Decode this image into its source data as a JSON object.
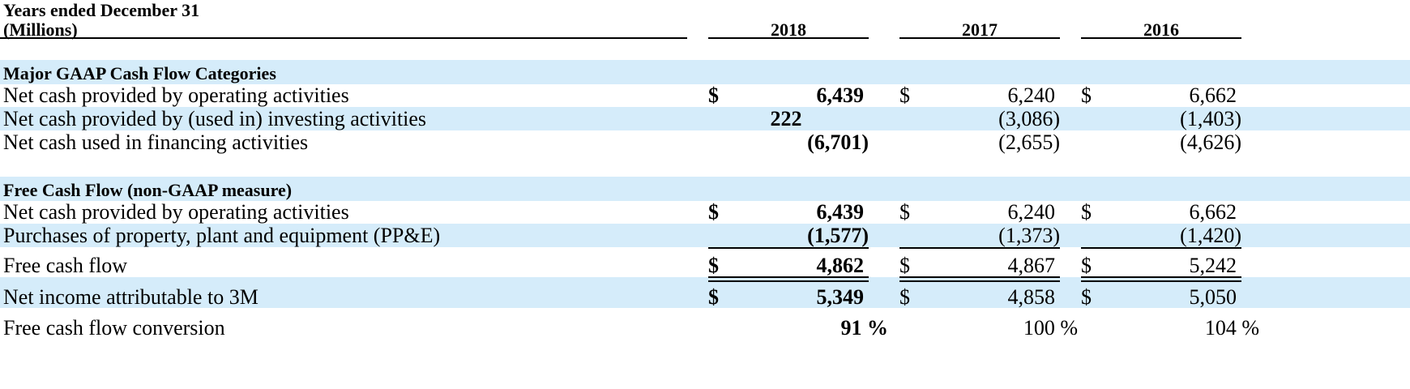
{
  "header": {
    "line1": "Years ended December 31",
    "line2": "(Millions)",
    "years": [
      "2018",
      "2017",
      "2016"
    ]
  },
  "section1": {
    "title": "Major GAAP Cash Flow Categories",
    "rows": [
      {
        "label": "Net cash provided by operating activities",
        "dollar": [
          "$",
          "$",
          "$"
        ],
        "values": [
          "6,439",
          "6,240",
          "6,662"
        ]
      },
      {
        "label": "Net cash provided by (used in) investing activities",
        "dollar": [
          "",
          "",
          ""
        ],
        "values": [
          "222",
          "(3,086)",
          "(1,403)"
        ]
      },
      {
        "label": "Net cash used in financing activities",
        "dollar": [
          "",
          "",
          ""
        ],
        "values": [
          "(6,701)",
          "(2,655)",
          "(4,626)"
        ]
      }
    ]
  },
  "section2": {
    "title": "Free Cash Flow (non-GAAP measure)",
    "rows": [
      {
        "label": "Net cash provided by operating activities",
        "dollar": [
          "$",
          "$",
          "$"
        ],
        "values": [
          "6,439",
          "6,240",
          "6,662"
        ]
      },
      {
        "label": "Purchases of property, plant and equipment (PP&E)",
        "dollar": [
          "",
          "",
          ""
        ],
        "values": [
          "(1,577)",
          "(1,373)",
          "(1,420)"
        ]
      },
      {
        "label": "Free cash flow",
        "dollar": [
          "$",
          "$",
          "$"
        ],
        "values": [
          "4,862",
          "4,867",
          "5,242"
        ]
      },
      {
        "label": "Net income attributable to 3M",
        "dollar": [
          "$",
          "$",
          "$"
        ],
        "values": [
          "5,349",
          "4,858",
          "5,050"
        ]
      },
      {
        "label": "Free cash flow conversion",
        "dollar": [
          "",
          "",
          ""
        ],
        "values": [
          "91 %",
          "100 %",
          "104 %"
        ]
      }
    ]
  },
  "colors": {
    "band": "#d5ecfa"
  }
}
